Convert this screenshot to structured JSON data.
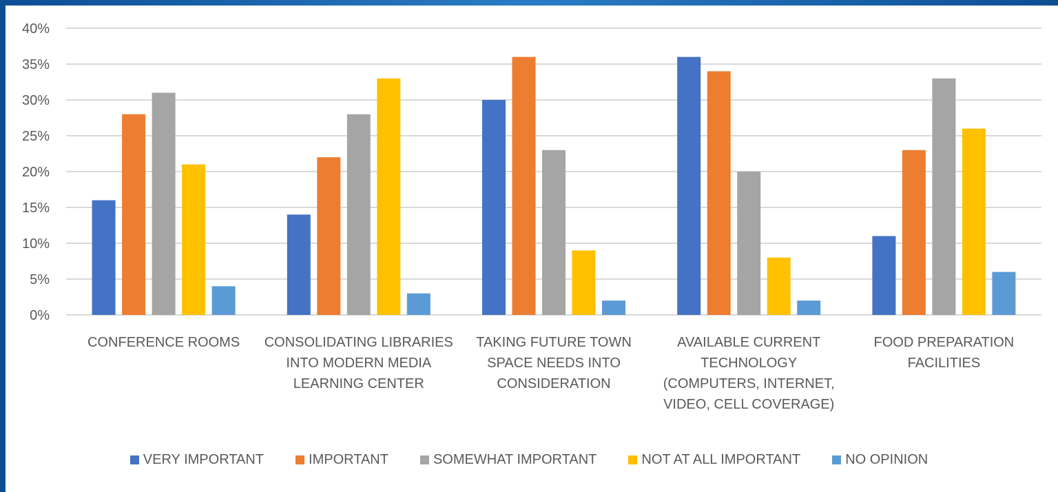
{
  "chart_data": {
    "type": "bar",
    "title": "",
    "xlabel": "",
    "ylabel": "",
    "ylim": [
      0,
      40
    ],
    "yticks": [
      "0%",
      "5%",
      "10%",
      "15%",
      "20%",
      "25%",
      "30%",
      "35%",
      "40%"
    ],
    "ytick_values": [
      0,
      5,
      10,
      15,
      20,
      25,
      30,
      35,
      40
    ],
    "grid": true,
    "legend_position": "bottom",
    "categories": [
      [
        "CONFERENCE ROOMS"
      ],
      [
        "CONSOLIDATING LIBRARIES",
        "INTO MODERN MEDIA",
        "LEARNING CENTER"
      ],
      [
        "TAKING FUTURE TOWN",
        "SPACE NEEDS INTO",
        "CONSIDERATION"
      ],
      [
        "AVAILABLE CURRENT",
        "TECHNOLOGY",
        "(COMPUTERS, INTERNET,",
        "VIDEO, CELL COVERAGE)"
      ],
      [
        "FOOD PREPARATION",
        "FACILITIES"
      ]
    ],
    "series": [
      {
        "name": "VERY IMPORTANT",
        "color": "#4472c4",
        "values": [
          16,
          14,
          30,
          36,
          11
        ]
      },
      {
        "name": "IMPORTANT",
        "color": "#ed7d31",
        "values": [
          28,
          22,
          36,
          34,
          23
        ]
      },
      {
        "name": "SOMEWHAT IMPORTANT",
        "color": "#a5a5a5",
        "values": [
          31,
          28,
          23,
          20,
          33
        ]
      },
      {
        "name": "NOT AT ALL IMPORTANT",
        "color": "#ffc000",
        "values": [
          21,
          33,
          9,
          8,
          26
        ]
      },
      {
        "name": "NO OPINION",
        "color": "#5b9bd5",
        "values": [
          4,
          3,
          2,
          2,
          6
        ]
      }
    ]
  }
}
